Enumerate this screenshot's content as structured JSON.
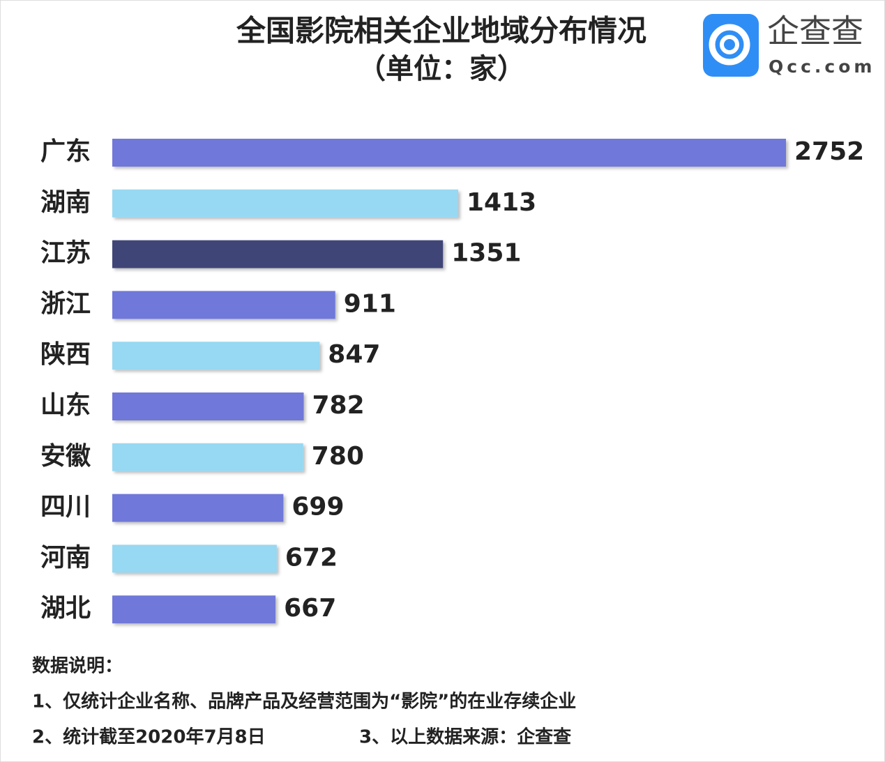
{
  "chart_data": {
    "type": "bar",
    "orientation": "horizontal",
    "title": "全国影院相关企业地域分布情况",
    "subtitle": "（单位：家）",
    "categories": [
      "广东",
      "湖南",
      "江苏",
      "浙江",
      "陕西",
      "山东",
      "安徽",
      "四川",
      "河南",
      "湖北"
    ],
    "values": [
      2752,
      1413,
      1351,
      911,
      847,
      782,
      780,
      699,
      672,
      667
    ],
    "colors": [
      "#6f78d9",
      "#97d8f2",
      "#3f4478",
      "#6f78d9",
      "#97d8f2",
      "#6f78d9",
      "#97d8f2",
      "#6f78d9",
      "#97d8f2",
      "#6f78d9"
    ]
  },
  "logo": {
    "name": "企查查",
    "domain": "Qcc.com"
  },
  "notes": {
    "heading": "数据说明：",
    "items": [
      "1、仅统计企业名称、品牌产品及经营范围为“影院”的在业存续企业",
      "2、统计截至2020年7月8日",
      "3、以上数据来源：企查查"
    ]
  }
}
